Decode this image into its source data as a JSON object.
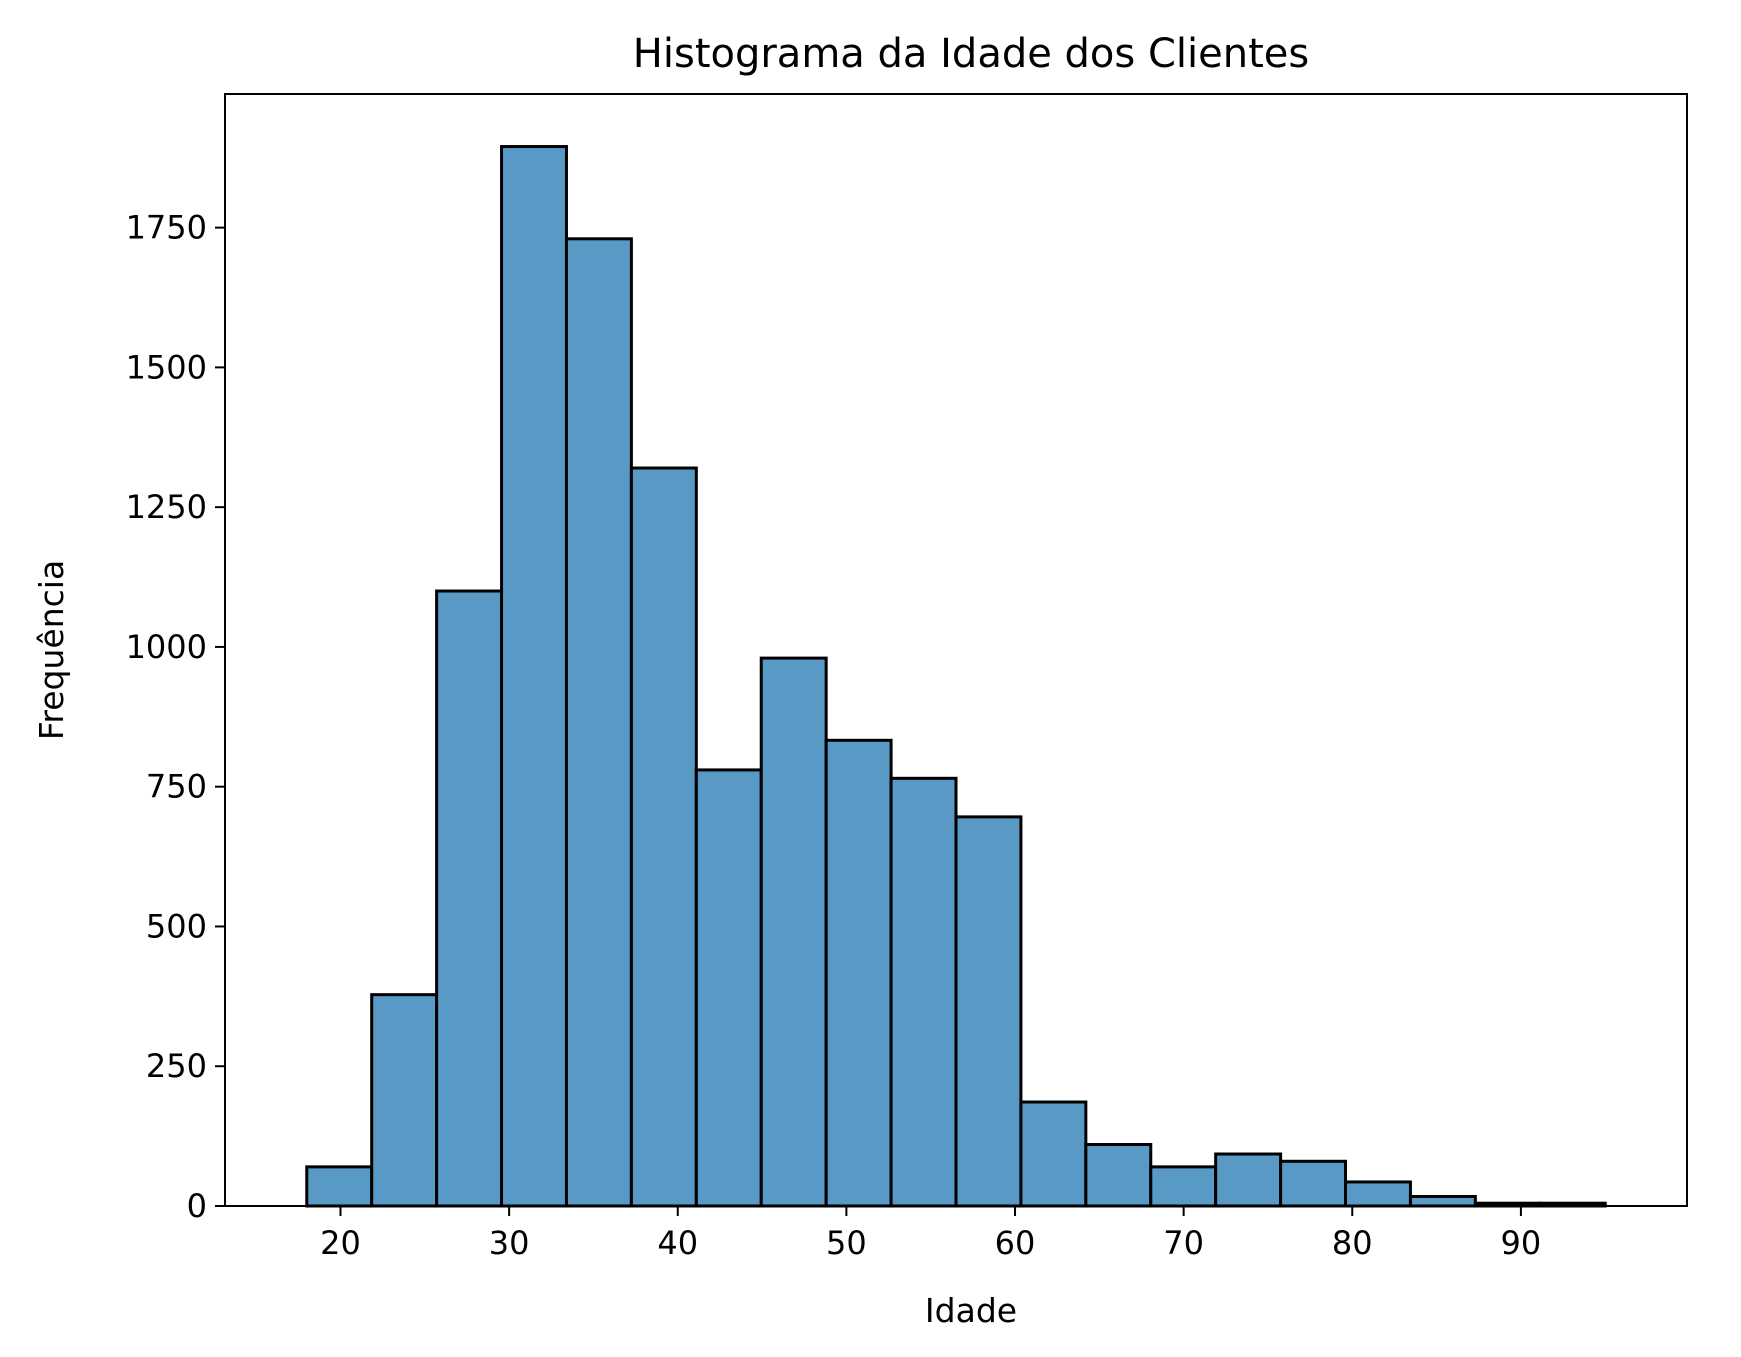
{
  "chart_data": {
    "type": "bar",
    "title": "Histograma da Idade dos Clientes",
    "xlabel": "Idade",
    "ylabel": "Frequência",
    "bin_edges": [
      18,
      21.85,
      25.7,
      29.55,
      33.4,
      37.25,
      41.1,
      44.95,
      48.8,
      52.65,
      56.5,
      60.35,
      64.2,
      68.05,
      71.9,
      75.75,
      79.6,
      83.45,
      87.3,
      91.15,
      95
    ],
    "values": [
      70,
      378,
      1100,
      1895,
      1730,
      1320,
      780,
      980,
      833,
      765,
      696,
      186,
      110,
      70,
      93,
      80,
      43,
      17,
      5,
      5
    ],
    "xlim": [
      13.15,
      99.85
    ],
    "ylim": [
      0,
      1989
    ],
    "xticks": [
      20,
      30,
      40,
      50,
      60,
      70,
      80,
      90
    ],
    "yticks": [
      0,
      250,
      500,
      750,
      1000,
      1250,
      1500,
      1750
    ],
    "bar_color": "#5899c6",
    "edge_color": "#000000",
    "grid": false,
    "legend": "none"
  }
}
